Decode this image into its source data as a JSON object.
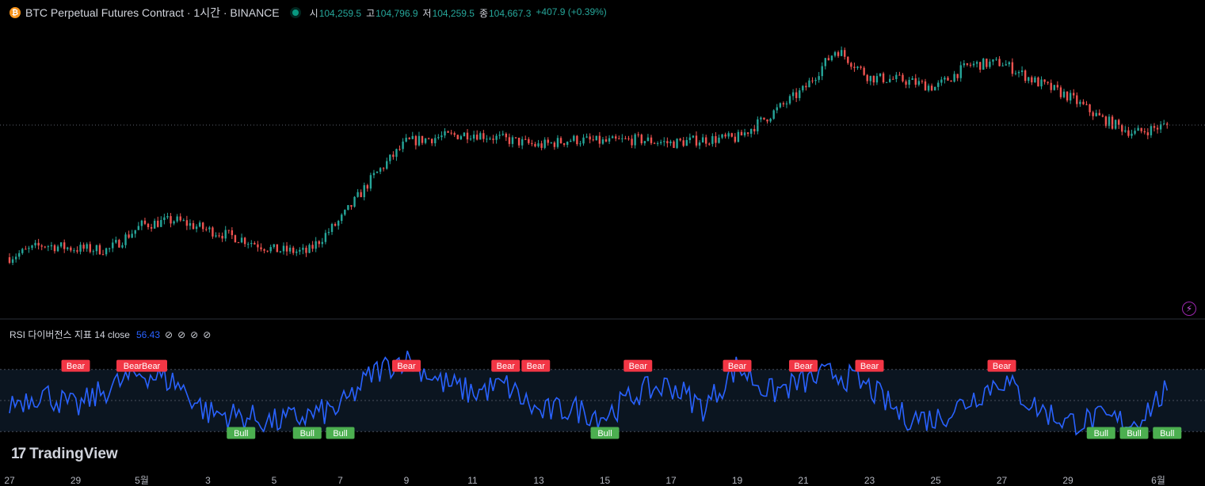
{
  "header": {
    "coin_icon": "bitcoin-icon",
    "coin_glyph": "₿",
    "title": "BTC Perpetual Futures Contract · 1시간 · BINANCE",
    "ohlc": {
      "open_label": "시",
      "open": "104,259.5",
      "high_label": "고",
      "high": "104,796.9",
      "low_label": "저",
      "low": "104,259.5",
      "close_label": "종",
      "close": "104,667.3",
      "change": "+407.9 (+0.39%)"
    }
  },
  "indicator": {
    "name": "RSI 다이버전스 지표 14 close",
    "value": "56.43",
    "icons": [
      "⊘",
      "⊘",
      "⊘",
      "⊘"
    ]
  },
  "logo": {
    "mark": "17",
    "text": "TradingView"
  },
  "alert_icon": "lightning-icon",
  "x_axis_labels": [
    "27",
    "29",
    "5월",
    "3",
    "5",
    "7",
    "9",
    "11",
    "13",
    "15",
    "17",
    "19",
    "21",
    "23",
    "25",
    "27",
    "29",
    "6월"
  ],
  "colors": {
    "up": "#26a69a",
    "down": "#ef5350",
    "rsi": "#2962ff",
    "bear": "#f23645",
    "bull": "#4caf50",
    "band": "#0b1520"
  },
  "chart_data": [
    {
      "type": "candlestick",
      "title": "BTC Perpetual Futures Contract · 1시간 · BINANCE",
      "interval": "1h",
      "approx_price_path": [
        {
          "date": "4/27",
          "price": 94000
        },
        {
          "date": "4/28",
          "price": 95000
        },
        {
          "date": "4/29",
          "price": 94700
        },
        {
          "date": "4/30",
          "price": 94600
        },
        {
          "date": "5/1",
          "price": 96600
        },
        {
          "date": "5/2",
          "price": 97000
        },
        {
          "date": "5/3",
          "price": 96200
        },
        {
          "date": "5/4",
          "price": 95500
        },
        {
          "date": "5/5",
          "price": 94600
        },
        {
          "date": "5/6",
          "price": 94400
        },
        {
          "date": "5/7",
          "price": 97000
        },
        {
          "date": "5/8",
          "price": 100500
        },
        {
          "date": "5/9",
          "price": 103300
        },
        {
          "date": "5/10",
          "price": 103700
        },
        {
          "date": "5/11",
          "price": 104000
        },
        {
          "date": "5/12",
          "price": 103500
        },
        {
          "date": "5/13",
          "price": 103000
        },
        {
          "date": "5/14",
          "price": 103500
        },
        {
          "date": "5/15",
          "price": 103300
        },
        {
          "date": "5/16",
          "price": 103500
        },
        {
          "date": "5/17",
          "price": 103200
        },
        {
          "date": "5/18",
          "price": 103500
        },
        {
          "date": "5/19",
          "price": 103600
        },
        {
          "date": "5/20",
          "price": 105500
        },
        {
          "date": "5/21",
          "price": 107500
        },
        {
          "date": "5/22",
          "price": 110800
        },
        {
          "date": "5/23",
          "price": 108500
        },
        {
          "date": "5/24",
          "price": 108300
        },
        {
          "date": "5/25",
          "price": 107700
        },
        {
          "date": "5/26",
          "price": 109500
        },
        {
          "date": "5/27",
          "price": 109700
        },
        {
          "date": "5/28",
          "price": 108200
        },
        {
          "date": "5/29",
          "price": 107000
        },
        {
          "date": "5/30",
          "price": 105200
        },
        {
          "date": "5/31",
          "price": 104000
        },
        {
          "date": "6/1",
          "price": 104667
        }
      ]
    },
    {
      "type": "line",
      "title": "RSI 다이버전스 지표 14 close",
      "ylim": [
        0,
        100
      ],
      "bands": [
        30,
        50,
        70
      ],
      "current_value": 56.43,
      "approx_rsi_path": [
        {
          "date": "4/27",
          "value": 48
        },
        {
          "date": "4/28",
          "value": 55
        },
        {
          "date": "4/29",
          "value": 45
        },
        {
          "date": "4/30",
          "value": 58
        },
        {
          "date": "5/1",
          "value": 68
        },
        {
          "date": "5/2",
          "value": 62
        },
        {
          "date": "5/3",
          "value": 42
        },
        {
          "date": "5/4",
          "value": 40
        },
        {
          "date": "5/5",
          "value": 36
        },
        {
          "date": "5/6",
          "value": 40
        },
        {
          "date": "5/7",
          "value": 45
        },
        {
          "date": "5/8",
          "value": 68
        },
        {
          "date": "5/9",
          "value": 78
        },
        {
          "date": "5/10",
          "value": 62
        },
        {
          "date": "5/11",
          "value": 55
        },
        {
          "date": "5/12",
          "value": 60
        },
        {
          "date": "5/13",
          "value": 42
        },
        {
          "date": "5/14",
          "value": 45
        },
        {
          "date": "5/15",
          "value": 40
        },
        {
          "date": "5/16",
          "value": 55
        },
        {
          "date": "5/17",
          "value": 60
        },
        {
          "date": "5/18",
          "value": 45
        },
        {
          "date": "5/19",
          "value": 72
        },
        {
          "date": "5/20",
          "value": 55
        },
        {
          "date": "5/21",
          "value": 62
        },
        {
          "date": "5/22",
          "value": 68
        },
        {
          "date": "5/23",
          "value": 58
        },
        {
          "date": "5/24",
          "value": 40
        },
        {
          "date": "5/25",
          "value": 38
        },
        {
          "date": "5/26",
          "value": 50
        },
        {
          "date": "5/27",
          "value": 64
        },
        {
          "date": "5/28",
          "value": 46
        },
        {
          "date": "5/29",
          "value": 36
        },
        {
          "date": "5/30",
          "value": 38
        },
        {
          "date": "5/31",
          "value": 36
        },
        {
          "date": "6/1",
          "value": 56.43
        }
      ],
      "signals": [
        {
          "label": "Bear",
          "date": "4/29"
        },
        {
          "label": "BearBear",
          "date": "5/1"
        },
        {
          "label": "Bull",
          "date": "5/4"
        },
        {
          "label": "Bull",
          "date": "5/6"
        },
        {
          "label": "Bull",
          "date": "5/7"
        },
        {
          "label": "Bear",
          "date": "5/9"
        },
        {
          "label": "Bear",
          "date": "5/12"
        },
        {
          "label": "Bear",
          "date": "5/12"
        },
        {
          "label": "Bull",
          "date": "5/15"
        },
        {
          "label": "Bear",
          "date": "5/16"
        },
        {
          "label": "Bear",
          "date": "5/19"
        },
        {
          "label": "Bear",
          "date": "5/21"
        },
        {
          "label": "Bear",
          "date": "5/23"
        },
        {
          "label": "Bear",
          "date": "5/27"
        },
        {
          "label": "Bull",
          "date": "5/30"
        },
        {
          "label": "Bull",
          "date": "5/31"
        },
        {
          "label": "Bull",
          "date": "6/1"
        }
      ]
    }
  ]
}
